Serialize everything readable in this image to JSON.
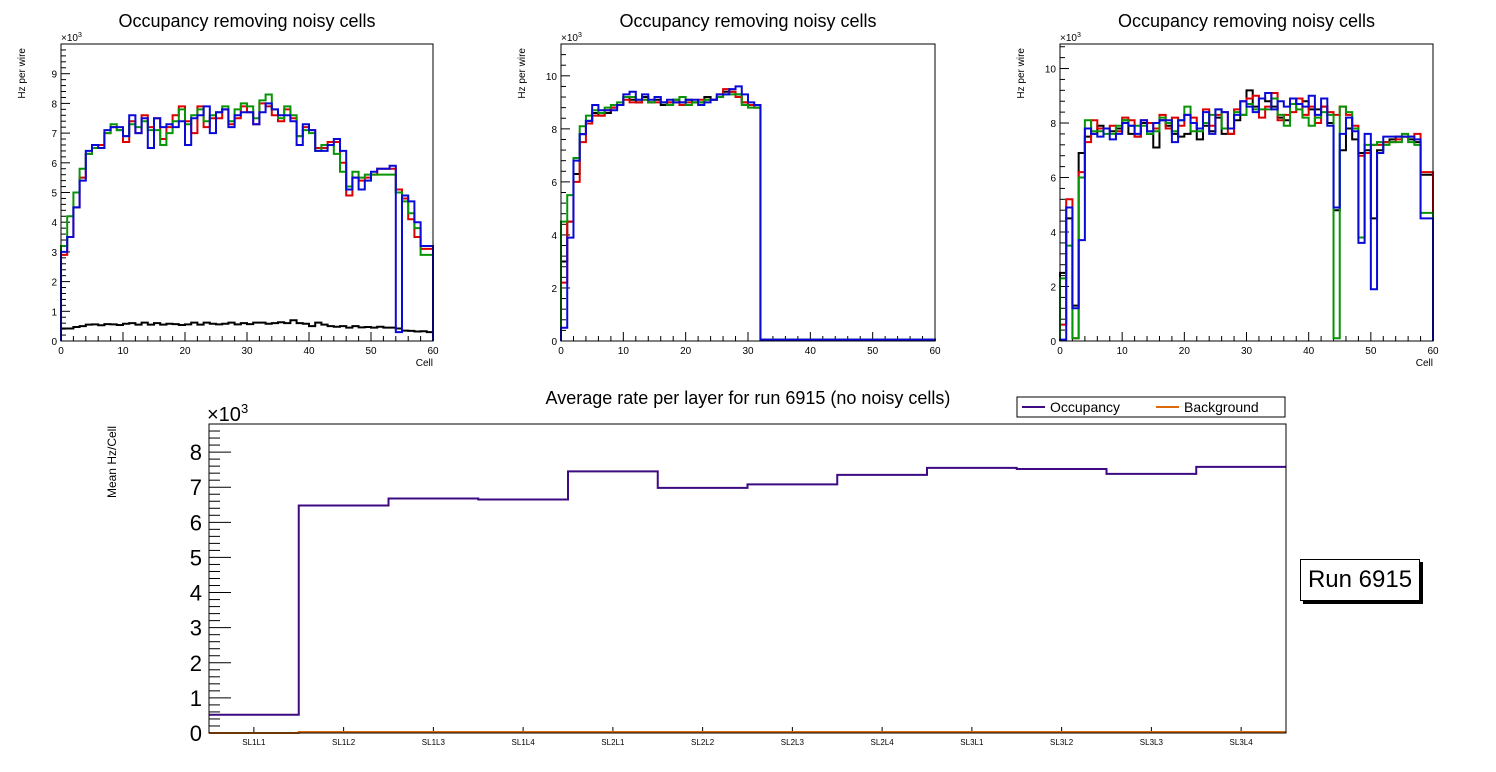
{
  "colors": {
    "black": "#000000",
    "red": "#dd0000",
    "green": "#079507",
    "blue": "#0a0ad6",
    "occupancy": "#3d0a82",
    "background": "#dd6a0a"
  },
  "top_charts": [
    {
      "title": "Occupancy removing noisy cells",
      "ylabel": "Hz per wire",
      "xlabel": "Cell",
      "exponent_label": "×10",
      "exponent_power": "3",
      "xlim": [
        0,
        60
      ],
      "ylim": [
        0,
        10.0
      ],
      "xticks": [
        0,
        10,
        20,
        30,
        40,
        50,
        60
      ],
      "yticks": [
        0,
        1,
        2,
        3,
        4,
        5,
        6,
        7,
        8,
        9
      ],
      "series": [
        {
          "name": "black",
          "color": "#000000",
          "values": [
            0.42,
            0.42,
            0.47,
            0.5,
            0.55,
            0.56,
            0.53,
            0.57,
            0.56,
            0.54,
            0.58,
            0.6,
            0.55,
            0.62,
            0.55,
            0.6,
            0.55,
            0.58,
            0.57,
            0.54,
            0.56,
            0.62,
            0.55,
            0.62,
            0.58,
            0.56,
            0.58,
            0.62,
            0.56,
            0.6,
            0.57,
            0.62,
            0.62,
            0.58,
            0.6,
            0.63,
            0.6,
            0.7,
            0.6,
            0.58,
            0.5,
            0.62,
            0.55,
            0.5,
            0.48,
            0.5,
            0.45,
            0.5,
            0.46,
            0.47,
            0.45,
            0.48,
            0.45,
            0.45,
            0.42,
            0.35,
            0.34,
            0.32,
            0.33,
            0.3
          ]
        },
        {
          "name": "red",
          "color": "#dd0000",
          "values": [
            2.9,
            3.5,
            4.5,
            5.5,
            6.3,
            6.6,
            6.6,
            7.0,
            7.2,
            7.1,
            6.7,
            7.4,
            7.0,
            7.6,
            7.2,
            7.5,
            6.8,
            7.2,
            7.6,
            7.9,
            7.4,
            7.0,
            7.9,
            7.2,
            7.5,
            7.5,
            7.8,
            7.3,
            7.5,
            7.9,
            7.7,
            7.3,
            8.0,
            7.9,
            7.6,
            7.4,
            7.8,
            7.5,
            6.9,
            7.2,
            7.1,
            6.5,
            6.5,
            6.7,
            6.7,
            6.0,
            4.9,
            5.5,
            5.4,
            5.5,
            5.6,
            5.8,
            5.8,
            5.8,
            5.1,
            4.8,
            4.1,
            3.5,
            3.1,
            3.1
          ]
        },
        {
          "name": "green",
          "color": "#079507",
          "values": [
            3.2,
            4.2,
            5.0,
            5.8,
            6.3,
            6.5,
            6.5,
            7.0,
            7.3,
            7.1,
            6.9,
            7.3,
            7.2,
            7.4,
            7.1,
            7.1,
            6.6,
            7.0,
            7.4,
            7.8,
            7.3,
            7.6,
            7.8,
            7.4,
            7.6,
            7.7,
            7.9,
            7.4,
            7.8,
            8.0,
            7.9,
            7.5,
            8.1,
            8.3,
            7.8,
            7.5,
            7.9,
            7.6,
            6.9,
            7.1,
            7.0,
            6.4,
            6.6,
            6.6,
            6.3,
            5.7,
            5.2,
            5.7,
            5.5,
            5.6,
            5.6,
            5.6,
            5.6,
            5.6,
            5.0,
            4.7,
            4.3,
            3.8,
            2.9,
            2.9
          ]
        },
        {
          "name": "blue",
          "color": "#0a0ad6",
          "values": [
            3.0,
            3.5,
            4.5,
            5.4,
            6.4,
            6.6,
            6.5,
            7.1,
            7.2,
            7.2,
            6.9,
            7.6,
            7.0,
            7.5,
            6.5,
            7.5,
            7.2,
            7.3,
            7.2,
            7.4,
            6.6,
            7.5,
            7.6,
            7.9,
            7.0,
            7.7,
            7.8,
            7.2,
            7.6,
            7.7,
            7.7,
            7.3,
            7.7,
            8.0,
            7.8,
            7.6,
            7.6,
            7.4,
            6.6,
            7.3,
            7.1,
            6.4,
            6.4,
            6.6,
            6.8,
            6.4,
            5.1,
            5.5,
            5.1,
            5.4,
            5.7,
            5.8,
            5.8,
            5.9,
            0.3,
            4.9,
            4.7,
            4.0,
            3.2,
            3.2
          ]
        }
      ]
    },
    {
      "title": "Occupancy removing noisy cells",
      "ylabel": "Hz per wire",
      "xlabel": "",
      "exponent_label": "×10",
      "exponent_power": "3",
      "xlim": [
        0,
        60
      ],
      "ylim": [
        0,
        11.2
      ],
      "xticks": [
        0,
        10,
        20,
        30,
        40,
        50,
        60
      ],
      "yticks": [
        0,
        2,
        4,
        6,
        8,
        10
      ],
      "series": [
        {
          "name": "black",
          "color": "#000000",
          "values": [
            3.0,
            4.5,
            6.3,
            7.8,
            8.3,
            8.6,
            8.5,
            8.6,
            8.8,
            8.9,
            9.2,
            9.1,
            9.0,
            9.2,
            9.0,
            9.1,
            8.9,
            9.0,
            9.1,
            9.0,
            9.1,
            9.0,
            9.0,
            9.2,
            9.1,
            9.2,
            9.4,
            9.4,
            9.3,
            9.0,
            8.9,
            8.8,
            0.05,
            0.05,
            0.05,
            0.05,
            0.05,
            0.05,
            0.05,
            0.05,
            0.05,
            0.05,
            0.05,
            0.05,
            0.05,
            0.05,
            0.05,
            0.05,
            0.05,
            0.05,
            0.05,
            0.05,
            0.05,
            0.05,
            0.05,
            0.05,
            0.05,
            0.05,
            0.05,
            0.05
          ]
        },
        {
          "name": "red",
          "color": "#dd0000",
          "values": [
            2.2,
            4.5,
            6.0,
            7.5,
            8.2,
            8.5,
            8.5,
            8.7,
            8.8,
            8.9,
            9.1,
            9.0,
            9.0,
            9.1,
            9.0,
            9.0,
            9.0,
            9.0,
            9.0,
            8.9,
            9.0,
            9.0,
            9.1,
            9.1,
            9.1,
            9.3,
            9.5,
            9.4,
            9.2,
            9.0,
            8.9,
            8.8,
            0.05,
            0.05,
            0.05,
            0.05,
            0.05,
            0.05,
            0.05,
            0.05,
            0.05,
            0.05,
            0.05,
            0.05,
            0.05,
            0.05,
            0.05,
            0.05,
            0.05,
            0.05,
            0.05,
            0.05,
            0.05,
            0.05,
            0.05,
            0.05,
            0.05,
            0.05,
            0.05,
            0.05
          ]
        },
        {
          "name": "green",
          "color": "#079507",
          "values": [
            4.5,
            5.5,
            6.9,
            8.1,
            8.5,
            8.7,
            8.6,
            8.8,
            8.9,
            9.0,
            9.2,
            9.2,
            9.1,
            9.1,
            9.0,
            9.2,
            9.0,
            8.9,
            9.1,
            9.2,
            8.9,
            9.0,
            9.0,
            9.1,
            9.1,
            9.2,
            9.3,
            9.3,
            9.3,
            8.9,
            8.8,
            8.8,
            0.05,
            0.05,
            0.05,
            0.05,
            0.05,
            0.05,
            0.05,
            0.05,
            0.05,
            0.05,
            0.05,
            0.05,
            0.05,
            0.05,
            0.05,
            0.05,
            0.05,
            0.05,
            0.05,
            0.05,
            0.05,
            0.05,
            0.05,
            0.05,
            0.05,
            0.05,
            0.05,
            0.05
          ]
        },
        {
          "name": "blue",
          "color": "#0a0ad6",
          "values": [
            0.5,
            3.9,
            6.8,
            7.8,
            8.3,
            8.9,
            8.7,
            8.7,
            8.7,
            8.9,
            9.3,
            9.4,
            9.1,
            9.3,
            9.1,
            9.2,
            9.0,
            9.1,
            9.0,
            9.0,
            9.1,
            9.1,
            8.9,
            9.0,
            9.1,
            9.3,
            9.3,
            9.5,
            9.6,
            9.3,
            9.0,
            8.9,
            0.05,
            0.05,
            0.05,
            0.05,
            0.05,
            0.05,
            0.05,
            0.05,
            0.05,
            0.05,
            0.05,
            0.05,
            0.05,
            0.05,
            0.05,
            0.05,
            0.05,
            0.05,
            0.05,
            0.05,
            0.05,
            0.05,
            0.05,
            0.05,
            0.05,
            0.05,
            0.05,
            0.05
          ]
        }
      ]
    },
    {
      "title": "Occupancy removing noisy cells",
      "ylabel": "Hz per wire",
      "xlabel": "Cell",
      "exponent_label": "×10",
      "exponent_power": "3",
      "xlim": [
        0,
        60
      ],
      "ylim": [
        0,
        10.9
      ],
      "xticks": [
        0,
        10,
        20,
        30,
        40,
        50,
        60
      ],
      "yticks": [
        0,
        2,
        4,
        6,
        8,
        10
      ],
      "series": [
        {
          "name": "black",
          "color": "#000000",
          "values": [
            2.5,
            4.5,
            1.3,
            6.9,
            7.5,
            7.6,
            7.9,
            7.8,
            7.7,
            7.8,
            8.1,
            7.6,
            7.5,
            8.0,
            7.6,
            7.1,
            8.1,
            7.9,
            7.6,
            7.5,
            7.6,
            8.0,
            7.4,
            7.9,
            7.7,
            8.2,
            7.6,
            7.6,
            8.1,
            8.3,
            9.2,
            8.6,
            8.9,
            8.8,
            8.6,
            8.2,
            8.1,
            8.7,
            8.9,
            8.8,
            8.5,
            8.5,
            8.6,
            8.0,
            4.8,
            7.0,
            7.8,
            7.4,
            6.9,
            7.0,
            4.5,
            7.0,
            7.3,
            7.4,
            7.5,
            7.5,
            7.4,
            7.3,
            6.1,
            6.1
          ]
        },
        {
          "name": "red",
          "color": "#dd0000",
          "values": [
            0.6,
            5.2,
            0.1,
            6.2,
            7.3,
            8.1,
            7.8,
            7.8,
            7.9,
            7.7,
            8.2,
            8.1,
            7.5,
            8.1,
            8.0,
            7.8,
            8.3,
            7.8,
            8.2,
            7.9,
            8.3,
            8.2,
            7.8,
            8.5,
            7.9,
            8.3,
            8.4,
            7.6,
            8.5,
            8.8,
            8.9,
            9.0,
            8.2,
            8.6,
            9.1,
            8.1,
            8.3,
            8.4,
            8.9,
            8.3,
            8.6,
            8.0,
            8.6,
            8.4,
            8.3,
            8.6,
            8.3,
            7.9,
            6.8,
            6.9,
            7.2,
            7.2,
            7.3,
            7.3,
            7.4,
            7.5,
            7.5,
            7.6,
            6.2,
            6.2
          ]
        },
        {
          "name": "green",
          "color": "#079507",
          "values": [
            2.3,
            3.5,
            0.1,
            6.0,
            8.1,
            7.7,
            7.7,
            7.6,
            7.6,
            7.9,
            8.1,
            7.9,
            7.9,
            7.9,
            7.6,
            7.7,
            8.2,
            8.0,
            7.7,
            8.1,
            8.6,
            7.7,
            7.7,
            8.0,
            8.3,
            8.5,
            7.8,
            7.8,
            8.4,
            8.3,
            8.7,
            8.5,
            8.5,
            8.5,
            8.9,
            8.3,
            7.9,
            8.7,
            8.5,
            8.2,
            7.9,
            8.2,
            8.4,
            8.3,
            0.1,
            8.6,
            8.4,
            7.8,
            3.8,
            7.2,
            7.2,
            7.3,
            7.2,
            7.3,
            7.3,
            7.6,
            7.3,
            7.2,
            4.7,
            4.7
          ]
        },
        {
          "name": "blue",
          "color": "#0a0ad6",
          "values": [
            0.05,
            4.9,
            1.2,
            3.7,
            7.8,
            7.6,
            7.5,
            7.8,
            7.4,
            7.6,
            8.0,
            7.9,
            7.6,
            8.1,
            7.7,
            8.0,
            8.1,
            8.1,
            7.3,
            8.1,
            8.3,
            8.0,
            7.8,
            8.4,
            7.6,
            8.5,
            8.4,
            7.8,
            8.3,
            8.8,
            8.6,
            8.4,
            8.9,
            9.1,
            8.5,
            8.8,
            8.6,
            8.9,
            8.7,
            8.6,
            9.0,
            8.3,
            8.9,
            7.9,
            4.9,
            7.6,
            8.2,
            7.7,
            3.6,
            7.6,
            1.9,
            6.9,
            7.5,
            7.5,
            7.5,
            7.5,
            7.5,
            7.4,
            4.5,
            4.5
          ]
        }
      ]
    }
  ],
  "bottom_chart": {
    "type": "bar",
    "title": "Average rate per layer for run 6915 (no noisy cells)",
    "ylabel": "Mean Hz/Cell",
    "exponent_label": "×10",
    "exponent_power": "3",
    "ylim": [
      0,
      8.8
    ],
    "yticks": [
      0,
      1,
      2,
      3,
      4,
      5,
      6,
      7,
      8
    ],
    "categories": [
      "SL1L1",
      "SL1L2",
      "SL1L3",
      "SL1L4",
      "SL2L1",
      "SL2L2",
      "SL2L3",
      "SL2L4",
      "SL3L1",
      "SL3L2",
      "SL3L3",
      "SL3L4"
    ],
    "series": [
      {
        "name": "Occupancy",
        "color": "#3d0a82",
        "values": [
          0.52,
          6.48,
          6.68,
          6.65,
          7.45,
          6.98,
          7.08,
          7.35,
          7.55,
          7.52,
          7.38,
          7.58
        ]
      },
      {
        "name": "Background",
        "color": "#dd6a0a",
        "values": [
          0.0,
          0.03,
          0.03,
          0.03,
          0.03,
          0.03,
          0.03,
          0.03,
          0.03,
          0.03,
          0.03,
          0.03
        ]
      }
    ],
    "legend": [
      "Occupancy",
      "Background"
    ]
  },
  "run_label": "Run 6915"
}
